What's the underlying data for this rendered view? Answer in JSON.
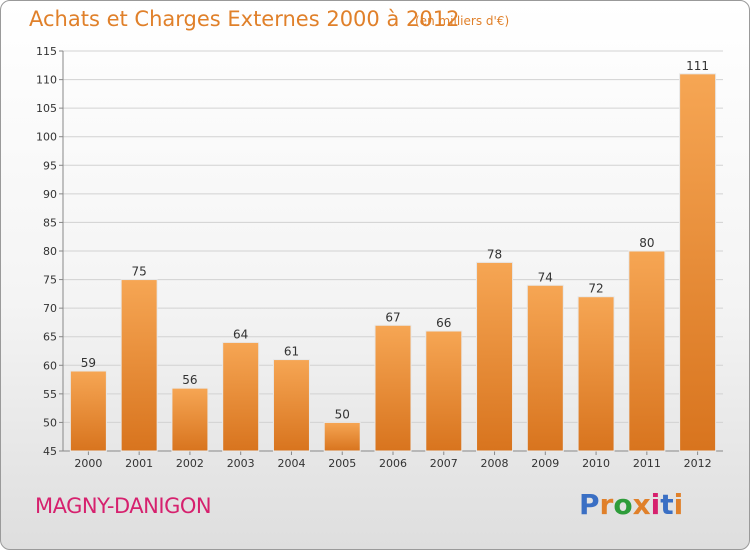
{
  "header": {
    "title": "Achats et Charges Externes 2000 à 2012",
    "subtitle": "(en milliers d'€)"
  },
  "footer": {
    "town": "MAGNY-DANIGON",
    "brand": "Proxiti"
  },
  "colors": {
    "title": "#e0802a",
    "town": "#d6216e",
    "bar_top": "#f6a654",
    "bar_bottom": "#d8741e",
    "brand_letters": [
      "#3a6fc4",
      "#e0802a",
      "#2e9c3a",
      "#e0802a",
      "#d6216e",
      "#3a6fc4",
      "#e0802a"
    ]
  },
  "chart_data": {
    "type": "bar",
    "categories": [
      "2000",
      "2001",
      "2002",
      "2003",
      "2004",
      "2005",
      "2006",
      "2007",
      "2008",
      "2009",
      "2010",
      "2011",
      "2012"
    ],
    "values": [
      59,
      75,
      56,
      64,
      61,
      50,
      67,
      66,
      78,
      74,
      72,
      80,
      111
    ],
    "yticks": [
      "45",
      "50",
      "55",
      "60",
      "65",
      "70",
      "75",
      "80",
      "85",
      "90",
      "95",
      "100",
      "105",
      "110",
      "115"
    ],
    "ylim": [
      45,
      115
    ],
    "grid": true,
    "legend": "none"
  }
}
